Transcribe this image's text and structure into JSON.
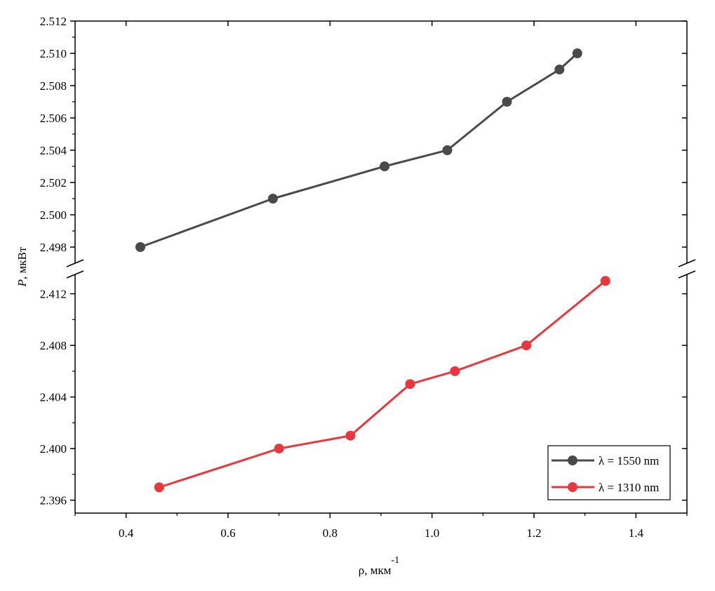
{
  "chart_data": {
    "type": "line",
    "title": "",
    "xlabel": "ρ, мкм",
    "xlabel_sup": "-1",
    "ylabel_italic": "P",
    "ylabel_rest": ", мкВт",
    "xlim": [
      0.3,
      1.5
    ],
    "x_ticks": [
      0.4,
      0.6,
      0.8,
      1.0,
      1.2,
      1.4
    ],
    "x_tick_labels": [
      "0.4",
      "0.6",
      "0.8",
      "1.0",
      "1.2",
      "1.4"
    ],
    "y_axis_break": true,
    "y_upper_range": [
      2.497,
      2.512
    ],
    "y_upper_ticks": [
      2.498,
      2.5,
      2.502,
      2.504,
      2.506,
      2.508,
      2.51,
      2.512
    ],
    "y_upper_tick_labels": [
      "2.498",
      "2.500",
      "2.502",
      "2.504",
      "2.506",
      "2.508",
      "2.510",
      "2.512"
    ],
    "y_lower_range": [
      2.395,
      2.4135
    ],
    "y_lower_ticks": [
      2.396,
      2.4,
      2.404,
      2.408,
      2.412
    ],
    "y_lower_tick_labels": [
      "2.396",
      "2.400",
      "2.404",
      "2.408",
      "2.412"
    ],
    "grid": false,
    "legend_position": "bottom-right",
    "series": [
      {
        "name": "λ = 1550 nm",
        "color": "#4a4a4a",
        "segment": "upper",
        "x": [
          0.428,
          0.688,
          0.907,
          1.03,
          1.147,
          1.25,
          1.285
        ],
        "y": [
          2.498,
          2.501,
          2.503,
          2.504,
          2.507,
          2.509,
          2.51
        ]
      },
      {
        "name": "λ = 1310 nm",
        "color": "#e8383d",
        "segment": "lower",
        "x": [
          0.465,
          0.7,
          0.84,
          0.957,
          1.045,
          1.185,
          1.34
        ],
        "y": [
          2.397,
          2.4,
          2.401,
          2.405,
          2.406,
          2.408,
          2.413
        ]
      }
    ]
  }
}
